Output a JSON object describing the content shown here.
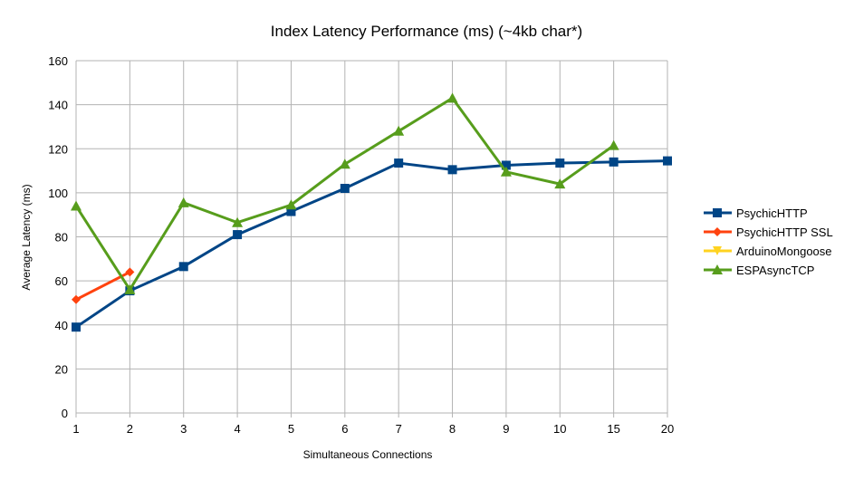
{
  "chart_data": {
    "type": "line",
    "title": "Index Latency Performance (ms) (~4kb char*)",
    "xlabel": "Simultaneous Connections",
    "ylabel": "Average Latency (ms)",
    "categories": [
      "1",
      "2",
      "3",
      "4",
      "5",
      "6",
      "7",
      "8",
      "9",
      "10",
      "15",
      "20"
    ],
    "ylim": [
      0,
      160
    ],
    "yticks": [
      0,
      20,
      40,
      60,
      80,
      100,
      120,
      140,
      160
    ],
    "grid": true,
    "legend_position": "right",
    "series": [
      {
        "name": "PsychicHTTP",
        "color": "#004586",
        "marker": "square",
        "values": [
          39,
          55.5,
          66.5,
          81,
          91.5,
          102,
          113.5,
          110.5,
          112.5,
          113.5,
          114,
          114.5
        ]
      },
      {
        "name": "PsychicHTTP SSL",
        "color": "#ff420e",
        "marker": "diamond",
        "values": [
          51.5,
          64,
          null,
          null,
          null,
          null,
          null,
          null,
          null,
          null,
          null,
          null
        ]
      },
      {
        "name": "ArduinoMongoose",
        "color": "#ffd320",
        "marker": "triangle-down",
        "values": [
          null,
          null,
          null,
          null,
          null,
          null,
          null,
          null,
          null,
          null,
          null,
          null
        ]
      },
      {
        "name": "ESPAsyncTCP",
        "color": "#579d1c",
        "marker": "triangle-up",
        "values": [
          94,
          56,
          95.5,
          86.5,
          94.5,
          113,
          128,
          143,
          109.5,
          104,
          121.5,
          null
        ]
      }
    ]
  }
}
